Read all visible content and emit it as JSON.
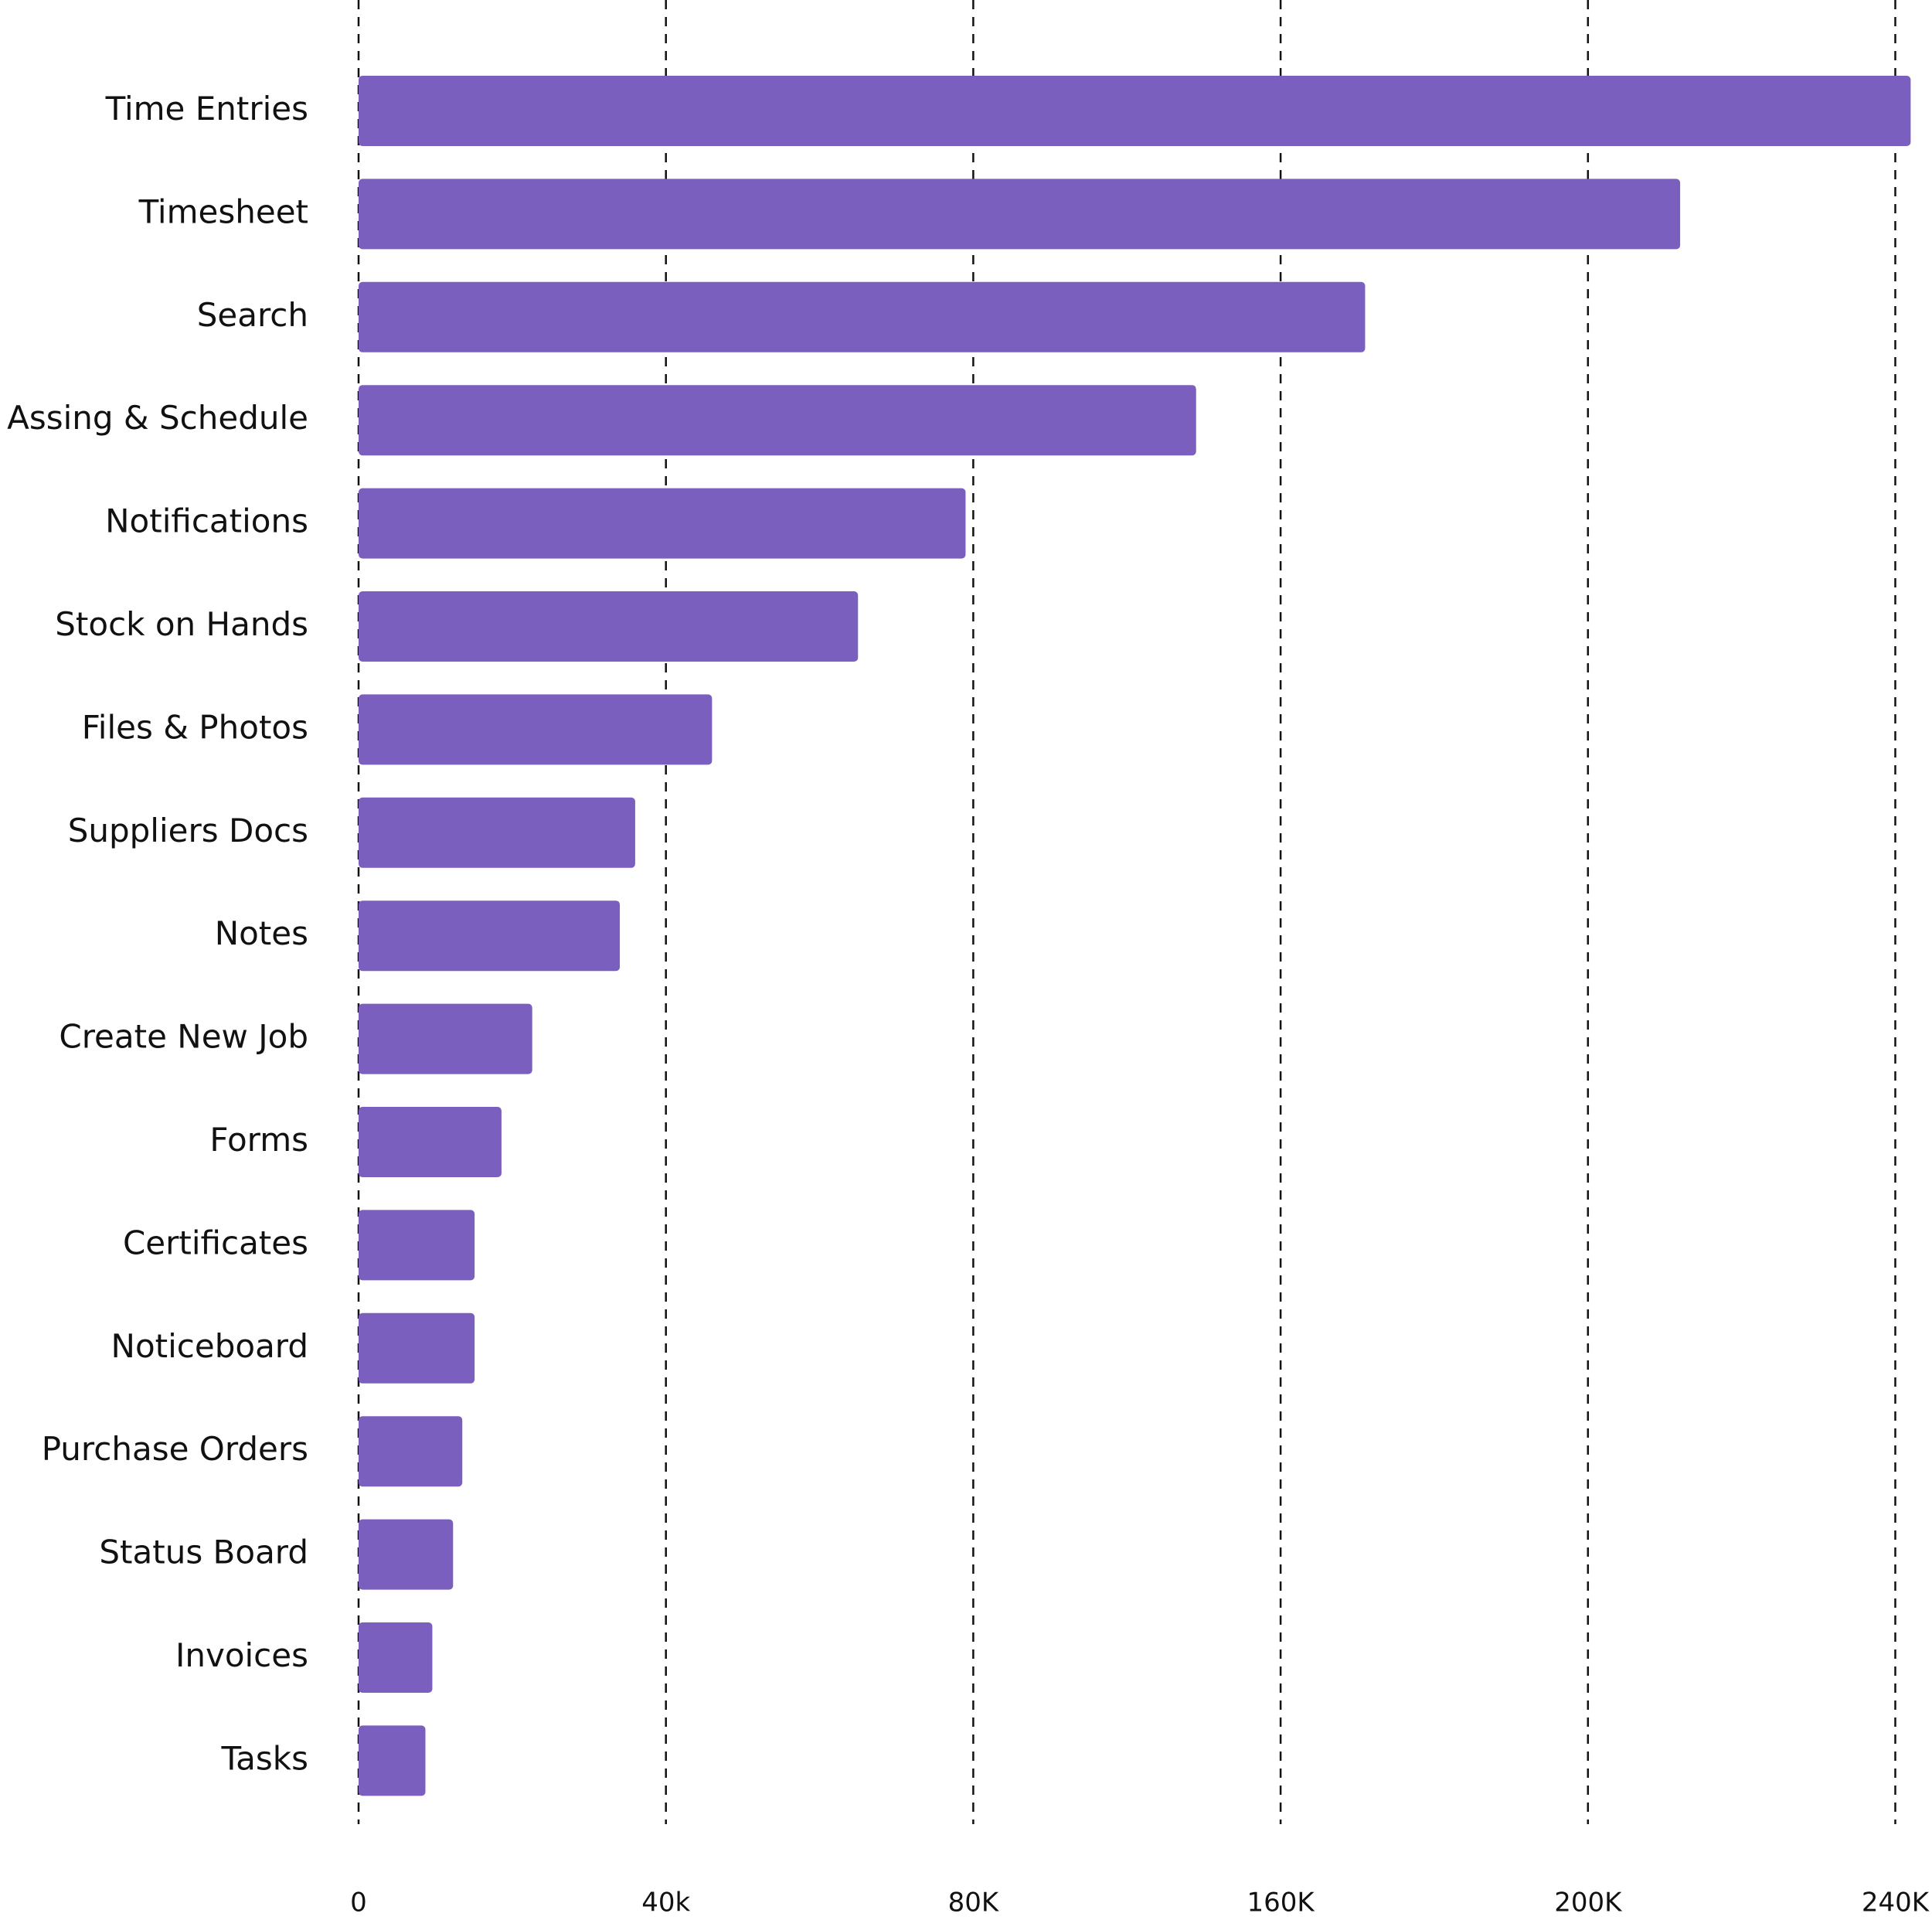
{
  "chart_data": {
    "type": "bar",
    "orientation": "horizontal",
    "categories": [
      "Time Entries",
      "Timesheet",
      "Search",
      "Assing & Schedule",
      "Notifications",
      "Stock on Hands",
      "Files & Photos",
      "Suppliers Docs",
      "Notes",
      "Create New Job",
      "Forms",
      "Certificates",
      "Noticeboard",
      "Purchase Orders",
      "Status Board",
      "Invoices",
      "Tasks"
    ],
    "values": [
      242000,
      212000,
      171000,
      138000,
      79000,
      65000,
      46000,
      36000,
      34000,
      22600,
      18600,
      15100,
      15100,
      13500,
      12300,
      9600,
      8700
    ],
    "color": "#7b5fbf",
    "xlim": [
      0,
      240000
    ],
    "xticks": [
      0,
      {
        "value": 40000,
        "label": "40k"
      },
      {
        "value": 80000,
        "label": "80K"
      },
      {
        "value": 160000,
        "label": "160K"
      },
      {
        "value": 200000,
        "label": "200K"
      },
      {
        "value": 240000,
        "label": "240K"
      }
    ],
    "grid": true
  }
}
